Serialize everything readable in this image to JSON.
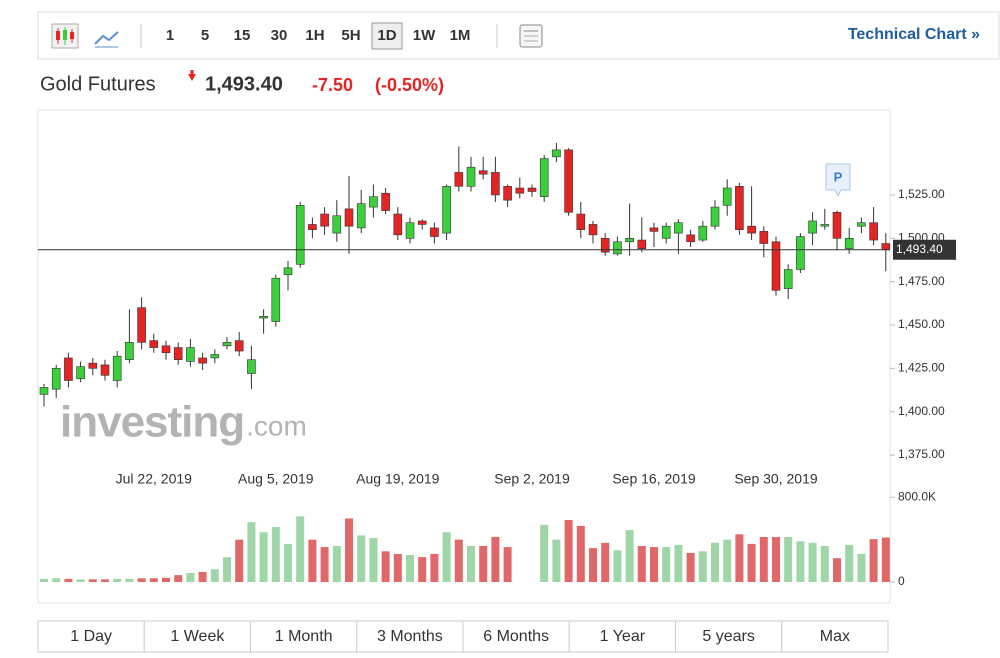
{
  "toolbar": {
    "intervals": [
      "1",
      "5",
      "15",
      "30",
      "1H",
      "5H",
      "1D",
      "1W",
      "1M"
    ],
    "active": "1D",
    "link": "Technical Chart »"
  },
  "header": {
    "name": "Gold Futures",
    "price": "1,493.40",
    "change": "-7.50",
    "change_percent": "(-0.50%)"
  },
  "chart_data": {
    "type": "candlestick",
    "categories": [
      null,
      null,
      null,
      null,
      null,
      null,
      null,
      null,
      null,
      "Jul 22, 2019",
      null,
      null,
      null,
      null,
      null,
      null,
      null,
      null,
      null,
      "Aug 5, 2019",
      null,
      null,
      null,
      null,
      null,
      null,
      null,
      null,
      null,
      "Aug 19, 2019",
      null,
      null,
      null,
      null,
      null,
      null,
      null,
      null,
      null,
      null,
      "Sep 2, 2019",
      null,
      null,
      null,
      null,
      null,
      null,
      null,
      null,
      null,
      "Sep 16, 2019",
      null,
      null,
      null,
      null,
      null,
      null,
      null,
      null,
      null,
      "Sep 30, 2019",
      null,
      null,
      null,
      null,
      null,
      null,
      null,
      null,
      null
    ],
    "open": [
      1410,
      1413,
      1431,
      1419,
      1428,
      1427,
      1418,
      1430,
      1460,
      1441,
      1438,
      1437,
      1429,
      1431,
      1431,
      1438,
      1441,
      1422,
      1454,
      1452,
      1479,
      1485,
      1508,
      1514,
      1503,
      1517,
      1506,
      1518,
      1526,
      1514,
      1500,
      1510,
      1506,
      1503,
      1538,
      1530,
      1539,
      1538,
      1530,
      1529,
      1529,
      1524,
      1547,
      1551,
      1514,
      1508,
      1500,
      1491,
      1498,
      1499,
      1506,
      1500,
      1503,
      1502,
      1499,
      1507,
      1519,
      1530,
      1507,
      1504,
      1498,
      1471,
      1482,
      1503,
      1507,
      1515,
      1494,
      1507,
      1509,
      1497
    ],
    "high": [
      1416,
      1427,
      1434,
      1429,
      1431,
      1430,
      1435,
      1459,
      1466,
      1445,
      1441,
      1440,
      1442,
      1434,
      1436,
      1443,
      1446,
      1438,
      1459,
      1479,
      1487,
      1521,
      1512,
      1518,
      1522,
      1536,
      1528,
      1531,
      1529,
      1518,
      1512,
      1511,
      1509,
      1531,
      1553,
      1547,
      1547,
      1547,
      1531,
      1535,
      1531,
      1548,
      1555,
      1552,
      1521,
      1510,
      1503,
      1501,
      1520,
      1512,
      1509,
      1509,
      1511,
      1505,
      1510,
      1522,
      1534,
      1532,
      1530,
      1507,
      1501,
      1485,
      1503,
      1515,
      1517,
      1516,
      1506,
      1512,
      1518,
      1503
    ],
    "low": [
      1403,
      1408,
      1414,
      1417,
      1421,
      1418,
      1414,
      1428,
      1436,
      1434,
      1430,
      1427,
      1426,
      1424,
      1428,
      1436,
      1432,
      1413,
      1445,
      1449,
      1470,
      1483,
      1500,
      1502,
      1498,
      1491,
      1503,
      1512,
      1514,
      1499,
      1497,
      1505,
      1497,
      1499,
      1527,
      1527,
      1534,
      1521,
      1518,
      1523,
      1524,
      1521,
      1544,
      1513,
      1500,
      1497,
      1490,
      1490,
      1490,
      1492,
      1495,
      1497,
      1491,
      1495,
      1498,
      1505,
      1513,
      1502,
      1499,
      1489,
      1467,
      1465,
      1480,
      1496,
      1505,
      1493,
      1491,
      1503,
      1496,
      1481
    ],
    "close": [
      1414,
      1425,
      1418,
      1426,
      1425,
      1421,
      1432,
      1440,
      1440,
      1437,
      1434,
      1430,
      1437,
      1428,
      1433,
      1440,
      1435,
      1430,
      1455,
      1477,
      1483,
      1519,
      1505,
      1507,
      1513,
      1507,
      1520,
      1524,
      1516,
      1502,
      1509,
      1508,
      1501,
      1530,
      1530,
      1541,
      1537,
      1525,
      1522,
      1526,
      1527,
      1546,
      1551,
      1515,
      1505,
      1502,
      1492,
      1498,
      1500,
      1494,
      1504,
      1507,
      1509,
      1498,
      1507,
      1518,
      1529,
      1505,
      1503,
      1497,
      1470,
      1482,
      1501,
      1510,
      1508,
      1500,
      1500,
      1509,
      1499,
      1493.4
    ],
    "ylim": [
      1371,
      1574
    ],
    "yticks": [
      {
        "value": 1375,
        "label": "1,375.00"
      },
      {
        "value": 1400,
        "label": "1,400.00"
      },
      {
        "value": 1425,
        "label": "1,425.00"
      },
      {
        "value": 1450,
        "label": "1,450.00"
      },
      {
        "value": 1475,
        "label": "1,475.00"
      },
      {
        "value": 1500,
        "label": "1,500.00"
      },
      {
        "value": 1525,
        "label": "1,525.00"
      }
    ],
    "last_price": {
      "value": 1493.4,
      "label": "1,493.40"
    },
    "up_color": "#3ccf3c",
    "down_color": "#e52424",
    "marker": "P",
    "watermark": {
      "brand": "investing",
      "suffix": ".com"
    },
    "volume": {
      "values": [
        30,
        35,
        30,
        25,
        25,
        25,
        30,
        30,
        35,
        35,
        40,
        65,
        85,
        95,
        120,
        235,
        400,
        565,
        470,
        520,
        360,
        620,
        400,
        330,
        340,
        600,
        440,
        415,
        290,
        265,
        255,
        235,
        265,
        470,
        400,
        340,
        340,
        425,
        330,
        null,
        null,
        540,
        400,
        585,
        530,
        320,
        370,
        300,
        490,
        340,
        330,
        330,
        350,
        275,
        290,
        370,
        400,
        450,
        360,
        425,
        425,
        425,
        385,
        370,
        340,
        225,
        350,
        265,
        405,
        420
      ],
      "ylim": [
        0,
        850
      ],
      "yticks": [
        0,
        {
          "value": 800,
          "label": "800.0K"
        }
      ],
      "up_color": "#9ed6a8",
      "down_color": "#e06868"
    }
  },
  "ranges": [
    "1 Day",
    "1 Week",
    "1 Month",
    "3 Months",
    "6 Months",
    "1 Year",
    "5 years",
    "Max"
  ]
}
